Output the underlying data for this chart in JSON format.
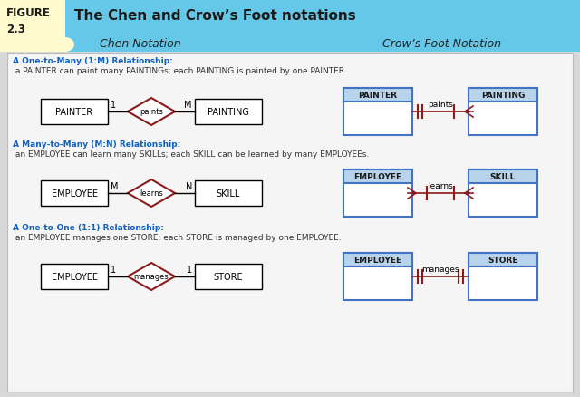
{
  "title": "The Chen and Crow’s Foot notations",
  "header_bg": "#65C8E8",
  "figure_label_bg": "#FFFACD",
  "body_bg": "#D8D8D8",
  "inner_bg": "#F5F5F5",
  "chen_header": "Chen Notation",
  "crow_header": "Crow’s Foot Notation",
  "rows": [
    {
      "desc_bold": "A One-to-Many (1:M) Relationship:",
      "desc_rest": " a PAINTER can paint many PAINTINGs; each PAINTING is painted by one PAINTER.",
      "chen": {
        "left_label": "PAINTER",
        "diamond_label": "paints",
        "right_label": "PAINTING",
        "left_card": "1",
        "right_card": "M"
      },
      "crow": {
        "left_label": "PAINTER",
        "right_label": "PAINTING",
        "line_label": "paints",
        "left_type": "one_mandatory",
        "right_type": "many_one"
      }
    },
    {
      "desc_bold": "A Many-to-Many (M:N) Relationship:",
      "desc_rest": " an EMPLOYEE can learn many SKILLs; each SKILL can be learned by many EMPLOYEEs.",
      "chen": {
        "left_label": "EMPLOYEE",
        "diamond_label": "learns",
        "right_label": "SKILL",
        "left_card": "M",
        "right_card": "N"
      },
      "crow": {
        "left_label": "EMPLOYEE",
        "right_label": "SKILL",
        "line_label": "learns",
        "left_type": "many_one",
        "right_type": "many_one"
      }
    },
    {
      "desc_bold": "A One-to-One (1:1) Relationship:",
      "desc_rest": " an EMPLOYEE manages one STORE; each STORE is managed by one EMPLOYEE.",
      "chen": {
        "left_label": "EMPLOYEE",
        "diamond_label": "manages",
        "right_label": "STORE",
        "left_card": "1",
        "right_card": "1"
      },
      "crow": {
        "left_label": "EMPLOYEE",
        "right_label": "STORE",
        "line_label": "manages",
        "left_type": "one_mandatory",
        "right_type": "one_mandatory"
      }
    }
  ],
  "entity_box_color": "#4472C4",
  "entity_header_bg": "#B8D4EC",
  "diamond_color": "#8B1A1A",
  "line_color": "#8B1A1A",
  "desc_color_bold": "#1060C0",
  "desc_color_rest": "#333333"
}
